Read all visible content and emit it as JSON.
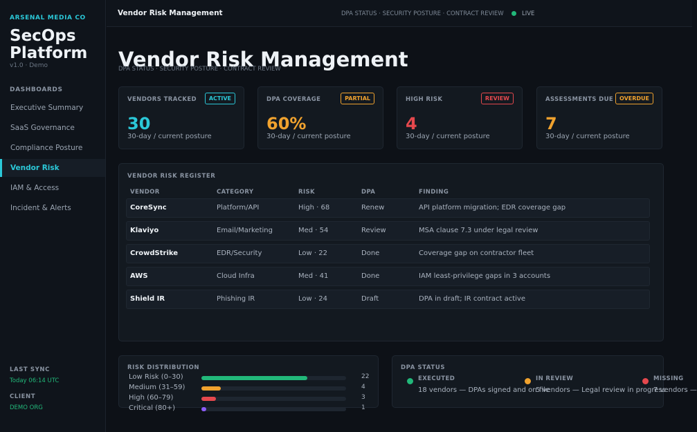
{
  "sidebar": {
    "org": "ARSENAL MEDIA CO",
    "brand_line1": "SecOps",
    "brand_line2": "Platform",
    "version": "v1.0 · Demo",
    "nav_heading": "DASHBOARDS",
    "items": [
      {
        "label": "Executive Summary"
      },
      {
        "label": "SaaS Governance"
      },
      {
        "label": "Compliance Posture"
      },
      {
        "label": "Vendor Risk",
        "active": true
      },
      {
        "label": "IAM & Access"
      },
      {
        "label": "Incident & Alerts"
      }
    ],
    "last_sync_label": "LAST SYNC",
    "last_sync_value": "Today 06:14 UTC",
    "client_label": "CLIENT",
    "client_value": "DEMO ORG"
  },
  "topbar": {
    "title": "Vendor Risk Management",
    "subtitle": "DPA STATUS · SECURITY POSTURE · CONTRACT REVIEW",
    "live": "LIVE"
  },
  "page": {
    "title": "Vendor Risk Management",
    "subtitle": "DPA STATUS · SECURITY POSTURE · CONTRACT REVIEW"
  },
  "kpis": [
    {
      "label": "VENDORS TRACKED",
      "badge": "ACTIVE",
      "value": "30",
      "foot": "30-day / current posture",
      "color": "#2bc8d8"
    },
    {
      "label": "DPA COVERAGE",
      "badge": "PARTIAL",
      "value": "60%",
      "foot": "30-day / current posture",
      "color": "#f0a22e"
    },
    {
      "label": "HIGH RISK",
      "badge": "REVIEW",
      "value": "4",
      "foot": "30-day / current posture",
      "color": "#e5484d"
    },
    {
      "label": "ASSESSMENTS DUE",
      "badge": "OVERDUE",
      "value": "7",
      "foot": "30-day / current posture",
      "color": "#f0a22e"
    }
  ],
  "register": {
    "heading": "VENDOR RISK REGISTER",
    "columns": [
      "VENDOR",
      "CATEGORY",
      "RISK",
      "DPA",
      "FINDING"
    ],
    "rows": [
      {
        "vendor": "CoreSync",
        "category": "Platform/API",
        "risk": "High · 68",
        "dpa": "Renew",
        "finding": "API platform migration; EDR coverage gap"
      },
      {
        "vendor": "Klaviyo",
        "category": "Email/Marketing",
        "risk": "Med · 54",
        "dpa": "Review",
        "finding": "MSA clause 7.3 under legal review"
      },
      {
        "vendor": "CrowdStrike",
        "category": "EDR/Security",
        "risk": "Low · 22",
        "dpa": "Done",
        "finding": "Coverage gap on contractor fleet"
      },
      {
        "vendor": "AWS",
        "category": "Cloud Infra",
        "risk": "Med · 41",
        "dpa": "Done",
        "finding": "IAM least-privilege gaps in 3 accounts"
      },
      {
        "vendor": "Shield IR",
        "category": "Phishing IR",
        "risk": "Low · 24",
        "dpa": "Draft",
        "finding": "DPA in draft; IR contract active"
      }
    ]
  },
  "distribution": {
    "heading": "RISK DISTRIBUTION",
    "max": 30,
    "rows": [
      {
        "label": "Low Risk (0–30)",
        "count": 22,
        "color": "#22b87a"
      },
      {
        "label": "Medium (31–59)",
        "count": 4,
        "color": "#f0a22e"
      },
      {
        "label": "High (60–79)",
        "count": 3,
        "color": "#e5484d"
      },
      {
        "label": "Critical (80+)",
        "count": 1,
        "color": "#8b5cf6"
      }
    ]
  },
  "dpa_status": {
    "heading": "DPA STATUS",
    "items": [
      {
        "name": "EXECUTED",
        "desc": "18 vendors — DPAs signed and on file",
        "color": "#22b87a"
      },
      {
        "name": "IN REVIEW",
        "desc": "5 vendors — Legal review in progress",
        "color": "#f0a22e"
      },
      {
        "name": "MISSING",
        "desc": "7 vendors — ",
        "color": "#e5484d"
      }
    ]
  }
}
